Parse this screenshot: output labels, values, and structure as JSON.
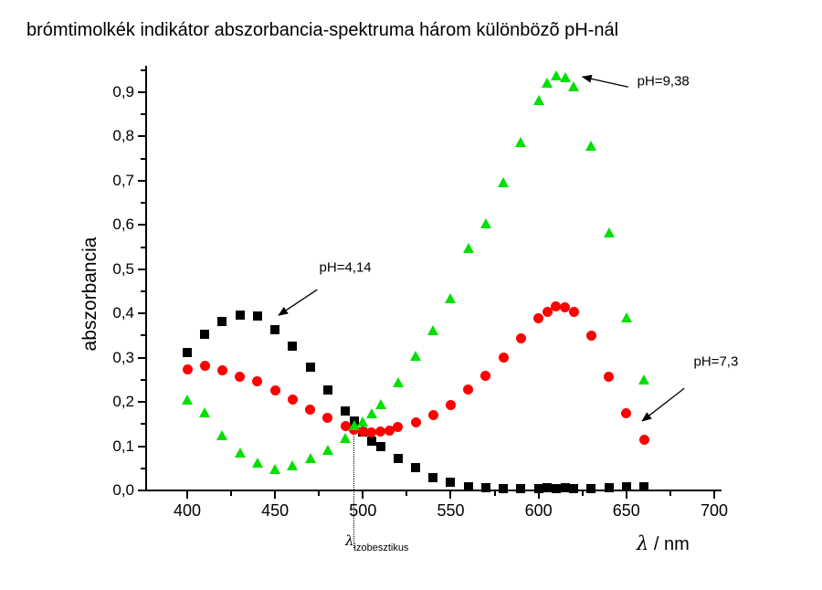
{
  "title": "brómtimolkék indikátor abszorbancia-spektruma három különbözõ pH-nál",
  "y_axis": {
    "label": "abszorbancia",
    "tick_values": [
      0.0,
      0.1,
      0.2,
      0.3,
      0.4,
      0.5,
      0.6,
      0.7,
      0.8,
      0.9
    ],
    "tick_labels": [
      "0,0",
      "0,1",
      "0,2",
      "0,3",
      "0,4",
      "0,5",
      "0,6",
      "0,7",
      "0,8",
      "0,9"
    ],
    "minor_tick_values": [
      0.05,
      0.15,
      0.25,
      0.35,
      0.45,
      0.55,
      0.65,
      0.75,
      0.85,
      0.95
    ]
  },
  "x_axis": {
    "label_symbol": "λ",
    "label_rest": " / nm",
    "tick_values": [
      400,
      450,
      500,
      550,
      600,
      650,
      700
    ],
    "tick_labels": [
      "400",
      "450",
      "500",
      "550",
      "600",
      "650",
      "700"
    ],
    "minor_tick_values": [
      425,
      475,
      525,
      575,
      625,
      675
    ]
  },
  "colors": {
    "black": "#000000",
    "red": "#ff0000",
    "green": "#00df00",
    "background": "#ffffff"
  },
  "chart_data": {
    "type": "scatter",
    "title": "brómtimolkék indikátor abszorbancia-spektruma három különbözõ pH-nál",
    "xlabel": "λ / nm",
    "ylabel": "abszorbancia",
    "xlim": [
      375,
      705
    ],
    "ylim": [
      0,
      0.96
    ],
    "grid": false,
    "legend": "none (arrow annotations instead)",
    "series": [
      {
        "name": "pH=4,14",
        "key": "ph414",
        "marker": "square",
        "color": "#000000",
        "points": [
          [
            400,
            0.312
          ],
          [
            410,
            0.352
          ],
          [
            420,
            0.382
          ],
          [
            430,
            0.397
          ],
          [
            440,
            0.395
          ],
          [
            450,
            0.364
          ],
          [
            460,
            0.326
          ],
          [
            470,
            0.279
          ],
          [
            480,
            0.228
          ],
          [
            490,
            0.18
          ],
          [
            495,
            0.156
          ],
          [
            500,
            0.132
          ],
          [
            505,
            0.111
          ],
          [
            510,
            0.099
          ],
          [
            520,
            0.072
          ],
          [
            530,
            0.051
          ],
          [
            540,
            0.029
          ],
          [
            550,
            0.019
          ],
          [
            560,
            0.009
          ],
          [
            570,
            0.007
          ],
          [
            580,
            0.005
          ],
          [
            590,
            0.005
          ],
          [
            600,
            0.005
          ],
          [
            605,
            0.006
          ],
          [
            610,
            0.005
          ],
          [
            615,
            0.006
          ],
          [
            620,
            0.005
          ],
          [
            630,
            0.005
          ],
          [
            640,
            0.006
          ],
          [
            650,
            0.008
          ],
          [
            660,
            0.008
          ]
        ]
      },
      {
        "name": "pH=7,3",
        "key": "ph73",
        "marker": "circle",
        "color": "#ff0000",
        "points": [
          [
            400,
            0.273
          ],
          [
            410,
            0.282
          ],
          [
            420,
            0.271
          ],
          [
            430,
            0.258
          ],
          [
            440,
            0.247
          ],
          [
            450,
            0.226
          ],
          [
            460,
            0.205
          ],
          [
            470,
            0.183
          ],
          [
            480,
            0.165
          ],
          [
            490,
            0.146
          ],
          [
            495,
            0.138
          ],
          [
            500,
            0.134
          ],
          [
            505,
            0.132
          ],
          [
            510,
            0.134
          ],
          [
            515,
            0.136
          ],
          [
            520,
            0.143
          ],
          [
            530,
            0.154
          ],
          [
            540,
            0.171
          ],
          [
            550,
            0.192
          ],
          [
            560,
            0.228
          ],
          [
            570,
            0.26
          ],
          [
            580,
            0.301
          ],
          [
            590,
            0.344
          ],
          [
            600,
            0.39
          ],
          [
            605,
            0.404
          ],
          [
            610,
            0.415
          ],
          [
            615,
            0.414
          ],
          [
            620,
            0.404
          ],
          [
            630,
            0.349
          ],
          [
            640,
            0.258
          ],
          [
            650,
            0.174
          ],
          [
            660,
            0.114
          ]
        ]
      },
      {
        "name": "pH=9,38",
        "key": "ph938",
        "marker": "triangle",
        "color": "#00df00",
        "points": [
          [
            400,
            0.203
          ],
          [
            410,
            0.175
          ],
          [
            420,
            0.122
          ],
          [
            430,
            0.083
          ],
          [
            440,
            0.061
          ],
          [
            450,
            0.047
          ],
          [
            460,
            0.054
          ],
          [
            470,
            0.072
          ],
          [
            480,
            0.09
          ],
          [
            490,
            0.116
          ],
          [
            495,
            0.145
          ],
          [
            500,
            0.154
          ],
          [
            505,
            0.172
          ],
          [
            510,
            0.193
          ],
          [
            520,
            0.243
          ],
          [
            530,
            0.302
          ],
          [
            540,
            0.361
          ],
          [
            550,
            0.432
          ],
          [
            560,
            0.546
          ],
          [
            570,
            0.601
          ],
          [
            580,
            0.694
          ],
          [
            590,
            0.786
          ],
          [
            600,
            0.881
          ],
          [
            605,
            0.92
          ],
          [
            610,
            0.937
          ],
          [
            615,
            0.932
          ],
          [
            620,
            0.912
          ],
          [
            630,
            0.778
          ],
          [
            640,
            0.582
          ],
          [
            650,
            0.39
          ],
          [
            660,
            0.248
          ]
        ]
      }
    ],
    "annotations": [
      {
        "text": "pH=4,14",
        "points_to_series": "pH=4,14",
        "label_at": [
          490,
          0.503
        ],
        "arrow_from": [
          474,
          0.454
        ],
        "arrow_to": [
          452,
          0.396
        ]
      },
      {
        "text": "pH=9,38",
        "points_to_series": "pH=9,38",
        "label_at": [
          671,
          0.924
        ],
        "arrow_from": [
          651,
          0.912
        ],
        "arrow_to": [
          625,
          0.935
        ]
      },
      {
        "text": "pH=7,3",
        "points_to_series": "pH=7,3",
        "label_at": [
          701,
          0.291
        ],
        "arrow_from": [
          683,
          0.231
        ],
        "arrow_to": [
          659,
          0.157
        ]
      }
    ],
    "isosbestic_line": {
      "lambda": 495,
      "top_abs": 0.148,
      "label_main": "λ",
      "label_sub": "izobesztikus"
    }
  }
}
